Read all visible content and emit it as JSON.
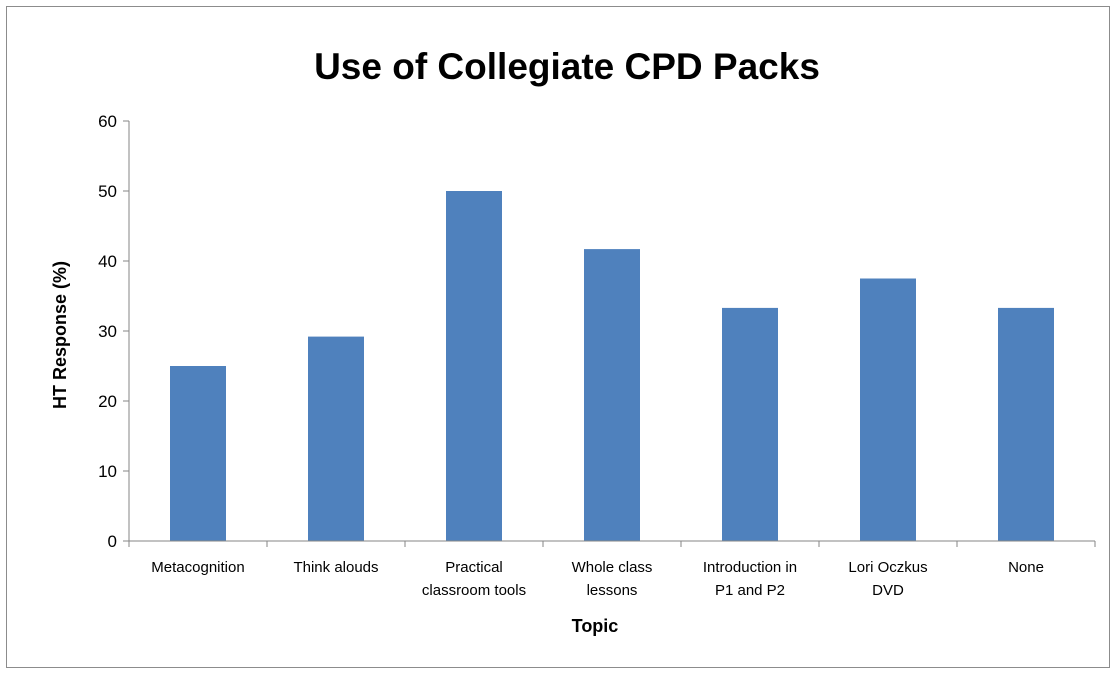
{
  "chart_data": {
    "type": "bar",
    "title": "Use of Collegiate CPD Packs",
    "xlabel": "Topic",
    "ylabel": "HT Response (%)",
    "categories": [
      [
        "Metacognition"
      ],
      [
        "Think alouds"
      ],
      [
        "Practical",
        "classroom tools"
      ],
      [
        "Whole class",
        "lessons"
      ],
      [
        "Introduction in",
        "P1 and P2"
      ],
      [
        "Lori Oczkus",
        "DVD"
      ],
      [
        "None"
      ]
    ],
    "values": [
      25,
      29.2,
      50,
      41.7,
      33.3,
      37.5,
      33.3
    ],
    "ylim": [
      0,
      60
    ],
    "yticks": [
      0,
      10,
      20,
      30,
      40,
      50,
      60
    ],
    "grid": false,
    "legend": "none",
    "bar_color": "#4f81bd",
    "axis_color": "#868686"
  }
}
